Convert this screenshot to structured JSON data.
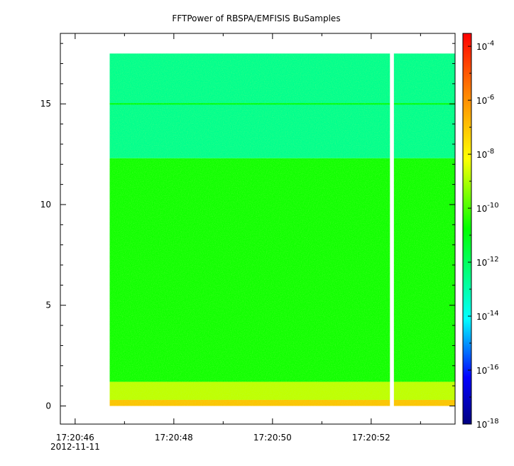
{
  "chart_data": {
    "type": "heatmap",
    "title": "FFTPower of RBSPA/EMFISIS  BuSamples",
    "xlabel": "",
    "ylabel": "",
    "x_ticks": [
      {
        "value": "17:20:46",
        "sub": "2012-11-11"
      },
      {
        "value": "17:20:48",
        "sub": ""
      },
      {
        "value": "17:20:50",
        "sub": ""
      },
      {
        "value": "17:20:52",
        "sub": ""
      }
    ],
    "xlim_seconds": [
      45.7,
      53.7
    ],
    "data_x_range_seconds": [
      46.7,
      53.7
    ],
    "data_gap_seconds": [
      52.38,
      52.46
    ],
    "y_ticks": [
      0,
      5,
      10,
      15
    ],
    "ylim": [
      -0.9,
      18.5
    ],
    "data_y_range": [
      0,
      17.5
    ],
    "colorbar": {
      "scale": "log",
      "range": [
        1e-18,
        0.0003
      ],
      "tick_labels": [
        {
          "base": "10",
          "exp": "-4",
          "value": 0.0001
        },
        {
          "base": "10",
          "exp": "-6",
          "value": 1e-06
        },
        {
          "base": "10",
          "exp": "-8",
          "value": 1e-08
        },
        {
          "base": "10",
          "exp": "-10",
          "value": 1e-10
        },
        {
          "base": "10",
          "exp": "-12",
          "value": 1e-12
        },
        {
          "base": "10",
          "exp": "-14",
          "value": 1e-14
        },
        {
          "base": "10",
          "exp": "-16",
          "value": 1e-16
        },
        {
          "base": "10",
          "exp": "-18",
          "value": 1e-18
        }
      ]
    },
    "regions": [
      {
        "y_range": [
          12.3,
          17.5
        ],
        "log_power": -12.6
      },
      {
        "y_range": [
          1.2,
          12.3
        ],
        "log_power": -10.6
      },
      {
        "y_range": [
          0.3,
          1.2
        ],
        "log_power": -8.8
      },
      {
        "y_range": [
          0,
          0.3
        ],
        "log_power": -7.0
      }
    ],
    "features": [
      {
        "type": "constant-line",
        "y": 15,
        "log_power": -10.8
      }
    ]
  }
}
